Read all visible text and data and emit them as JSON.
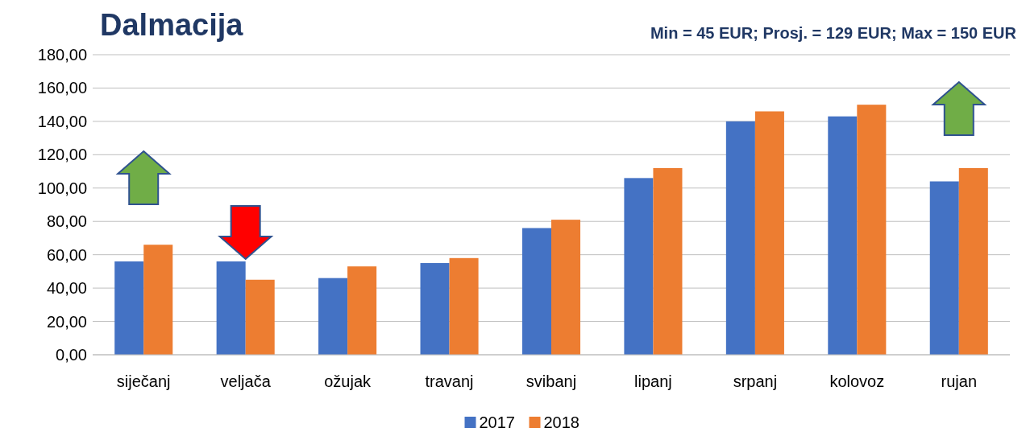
{
  "chart_data": {
    "type": "bar",
    "title": "Dalmacija",
    "annotations": [
      "Min = 45 EUR;  Prosj. = 129 EUR;  Max = 150 EUR"
    ],
    "categories": [
      "siječanj",
      "veljača",
      "ožujak",
      "travanj",
      "svibanj",
      "lipanj",
      "srpanj",
      "kolovoz",
      "rujan"
    ],
    "series": [
      {
        "name": "2017",
        "color": "#4472c4",
        "values": [
          56,
          56,
          46,
          55,
          76,
          106,
          140,
          143,
          104
        ]
      },
      {
        "name": "2018",
        "color": "#ed7d31",
        "values": [
          66,
          45,
          53,
          58,
          81,
          112,
          146,
          150,
          112
        ]
      }
    ],
    "ylim": [
      0,
      180
    ],
    "yticks": [
      {
        "value": 0,
        "label": "0,00"
      },
      {
        "value": 20,
        "label": "20,00"
      },
      {
        "value": 40,
        "label": "40,00"
      },
      {
        "value": 60,
        "label": "60,00"
      },
      {
        "value": 80,
        "label": "80,00"
      },
      {
        "value": 100,
        "label": "100,00"
      },
      {
        "value": 120,
        "label": "120,00"
      },
      {
        "value": 140,
        "label": "140,00"
      },
      {
        "value": 160,
        "label": "160,00"
      },
      {
        "value": 180,
        "label": "180,00"
      }
    ],
    "grid": "y",
    "legend": "bottom"
  }
}
